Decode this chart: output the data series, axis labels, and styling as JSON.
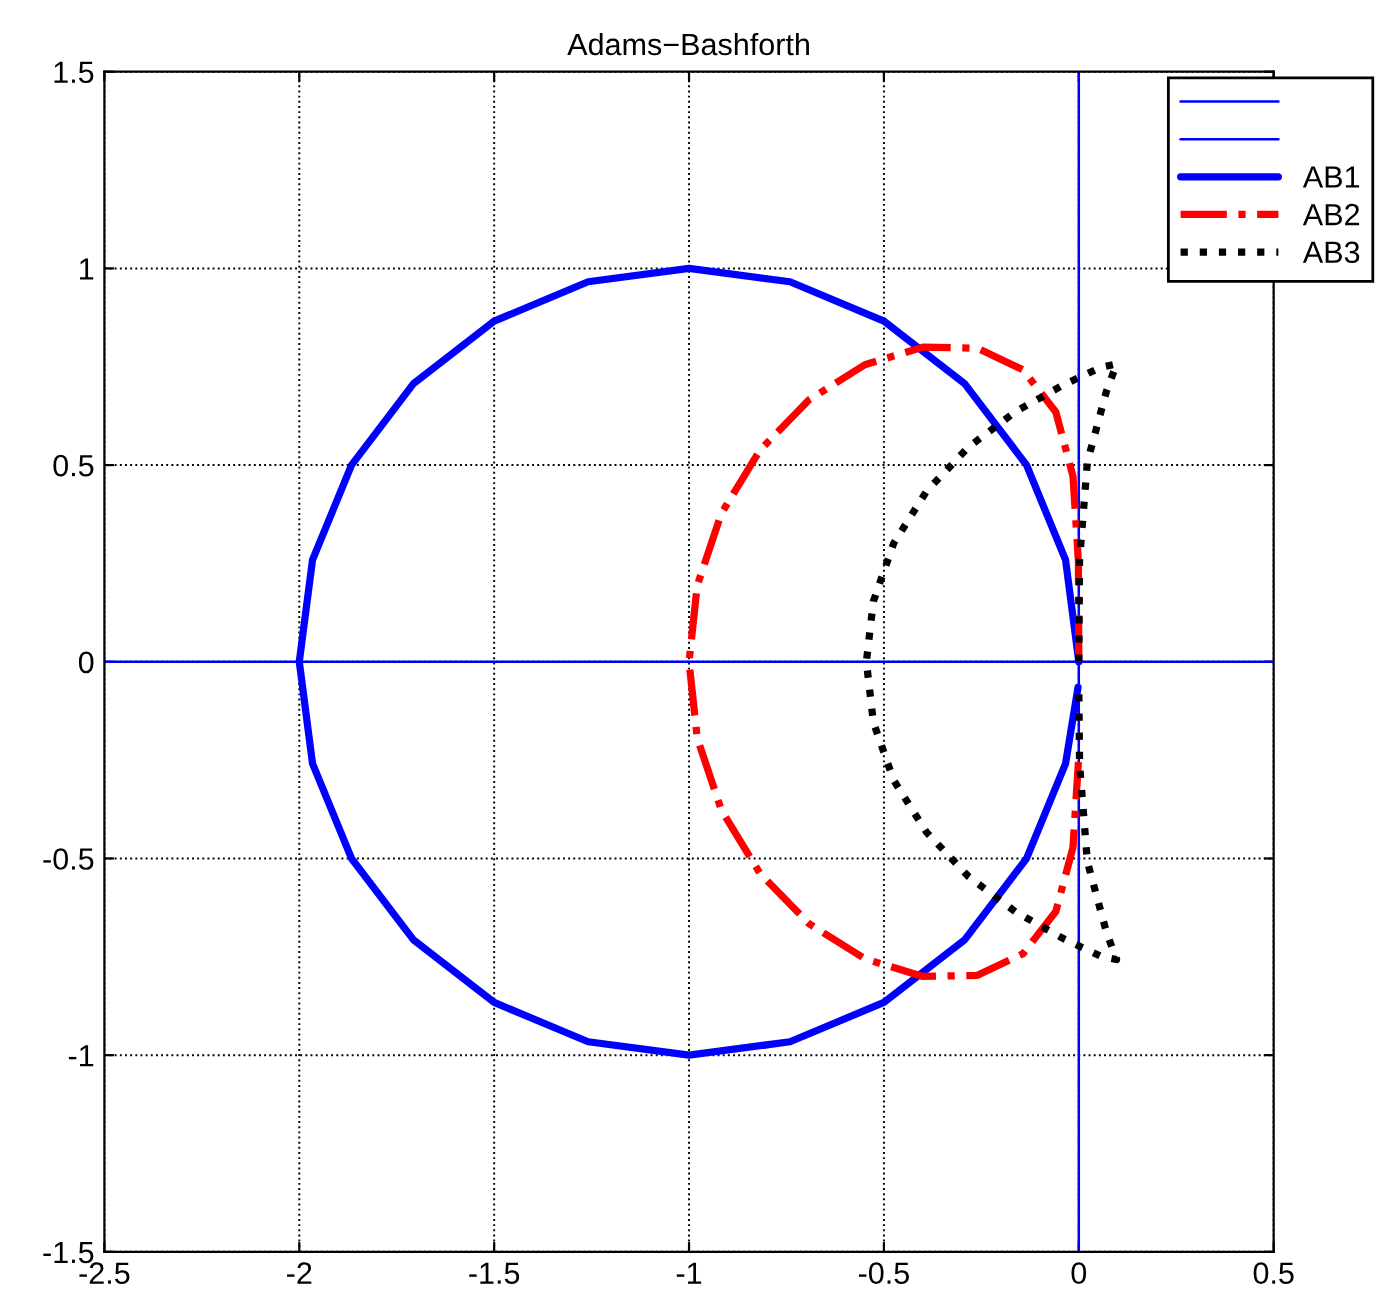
{
  "chart_data": {
    "type": "line",
    "title": "Adams−Bashforth",
    "xlim": [
      -2.5,
      0.5
    ],
    "ylim": [
      -1.5,
      1.5
    ],
    "xticks": [
      -2.5,
      -2,
      -1.5,
      -1,
      -0.5,
      0,
      0.5
    ],
    "yticks": [
      -1.5,
      -1,
      -0.5,
      0,
      0.5,
      1,
      1.5
    ],
    "grid": true,
    "legend": "top right",
    "series": [
      {
        "color": "#0000ff",
        "line_style": "solid",
        "x": [
          -2.5,
          0.5
        ],
        "values": [
          0,
          0
        ]
      },
      {
        "color": "#0000ff",
        "line_style": "solid",
        "x": [
          0,
          0
        ],
        "values": [
          -1.5,
          1.5
        ]
      },
      {
        "name": "AB1",
        "color": "#0000ff",
        "line_style": "solid",
        "x": [
          0,
          -0.034,
          -0.134,
          -0.293,
          -0.5,
          -0.741,
          -1,
          -1.259,
          -1.5,
          -1.707,
          -1.866,
          -1.966,
          -2,
          -1.966,
          -1.866,
          -1.707,
          -1.5,
          -1.259,
          -1,
          -0.741,
          -0.5,
          -0.293,
          -0.134,
          -0.034,
          -0.002
        ],
        "values": [
          0,
          0.259,
          0.5,
          0.707,
          0.866,
          0.966,
          1,
          0.966,
          0.866,
          0.707,
          0.5,
          0.259,
          0,
          -0.259,
          -0.5,
          -0.707,
          -0.866,
          -0.966,
          -1,
          -0.966,
          -0.866,
          -0.707,
          -0.5,
          -0.259,
          -0.065
        ]
      },
      {
        "name": "AB2",
        "color": "#ff0000",
        "line_style": "dashdot",
        "x": [
          0,
          -0.001,
          -0.015,
          -0.059,
          -0.143,
          -0.26,
          -0.4,
          -0.549,
          -0.692,
          -0.818,
          -0.917,
          -0.979,
          -1,
          -0.979,
          -0.917,
          -0.818,
          -0.692,
          -0.549,
          -0.4,
          -0.26,
          -0.143,
          -0.059,
          -0.015,
          -0.001
        ],
        "values": [
          0,
          0.255,
          0.472,
          0.635,
          0.742,
          0.797,
          0.8,
          0.755,
          0.666,
          0.538,
          0.377,
          0.194,
          0,
          -0.194,
          -0.377,
          -0.538,
          -0.666,
          -0.755,
          -0.8,
          -0.797,
          -0.742,
          -0.635,
          -0.472,
          -0.255
        ]
      },
      {
        "name": "AB3",
        "color": "#000000",
        "line_style": "dotted",
        "x": [
          0,
          0.002,
          0.022,
          0.071,
          0.097,
          0.055,
          -0.041,
          -0.162,
          -0.283,
          -0.391,
          -0.475,
          -0.527,
          -0.545,
          -0.527,
          -0.475,
          -0.391,
          -0.283,
          -0.162,
          -0.041,
          0.055,
          0.097,
          0.071,
          0.022,
          0.002,
          0
        ],
        "values": [
          0,
          0.261,
          0.508,
          0.688,
          0.757,
          0.748,
          0.703,
          0.636,
          0.546,
          0.433,
          0.301,
          0.154,
          0,
          -0.154,
          -0.301,
          -0.433,
          -0.546,
          -0.636,
          -0.703,
          -0.748,
          -0.757,
          -0.688,
          -0.508,
          -0.261,
          -0.065
        ]
      }
    ]
  }
}
